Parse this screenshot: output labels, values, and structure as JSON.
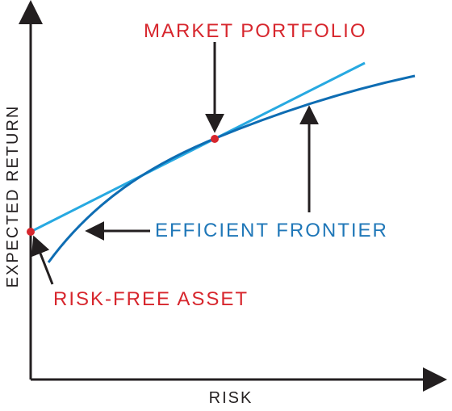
{
  "axes": {
    "y_label": "EXPECTED RETURN",
    "x_label": "RISK"
  },
  "labels": {
    "market_portfolio": "MARKET PORTFOLIO",
    "efficient_frontier": "EFFICIENT FRONTIER",
    "risk_free_asset": "RISK-FREE ASSET"
  },
  "colors": {
    "background": "#ffffff",
    "axis": "#231f20",
    "arrow": "#231f20",
    "frontier": "#0e6db3",
    "capital_market_line": "#27a9e1",
    "point": "#d7262d",
    "annotation_red": "#d7262d",
    "annotation_blue": "#1f77b8"
  },
  "legend": {
    "market_portfolio_marker": "point",
    "risk_free_marker": "point"
  }
}
